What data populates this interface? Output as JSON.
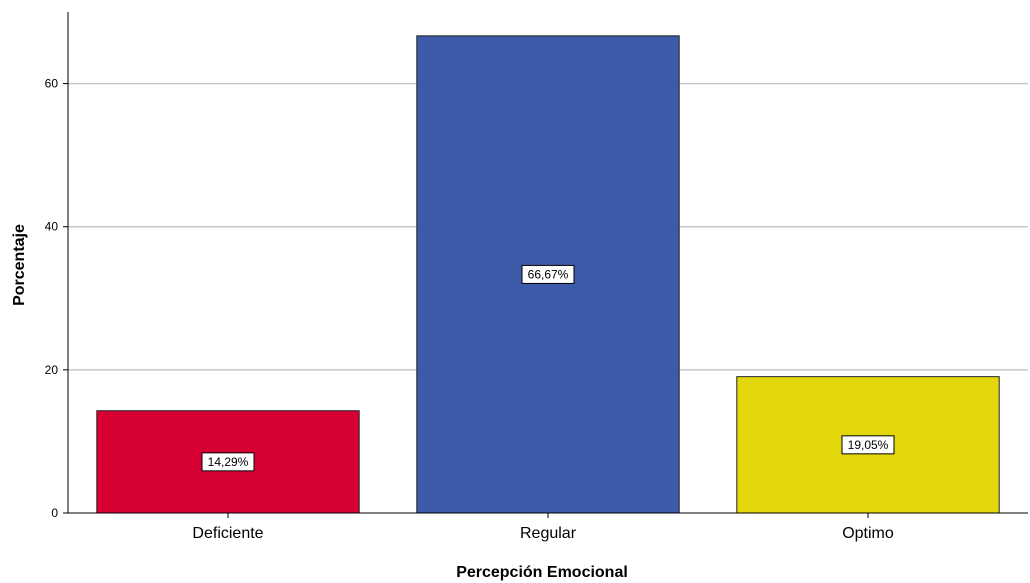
{
  "chart_data": {
    "type": "bar",
    "categories": [
      "Deficiente",
      "Regular",
      "Optimo"
    ],
    "values": [
      14.29,
      66.67,
      19.05
    ],
    "data_labels": [
      "14,29%",
      "66,67%",
      "19,05%"
    ],
    "colors": [
      "#d70032",
      "#3d5aa8",
      "#e3d70c"
    ],
    "xlabel": "Percepción Emocional",
    "ylabel": "Porcentaje",
    "ylim": [
      0,
      70
    ],
    "yticks": [
      0,
      20,
      40,
      60
    ],
    "grid": true,
    "legend": "none"
  }
}
